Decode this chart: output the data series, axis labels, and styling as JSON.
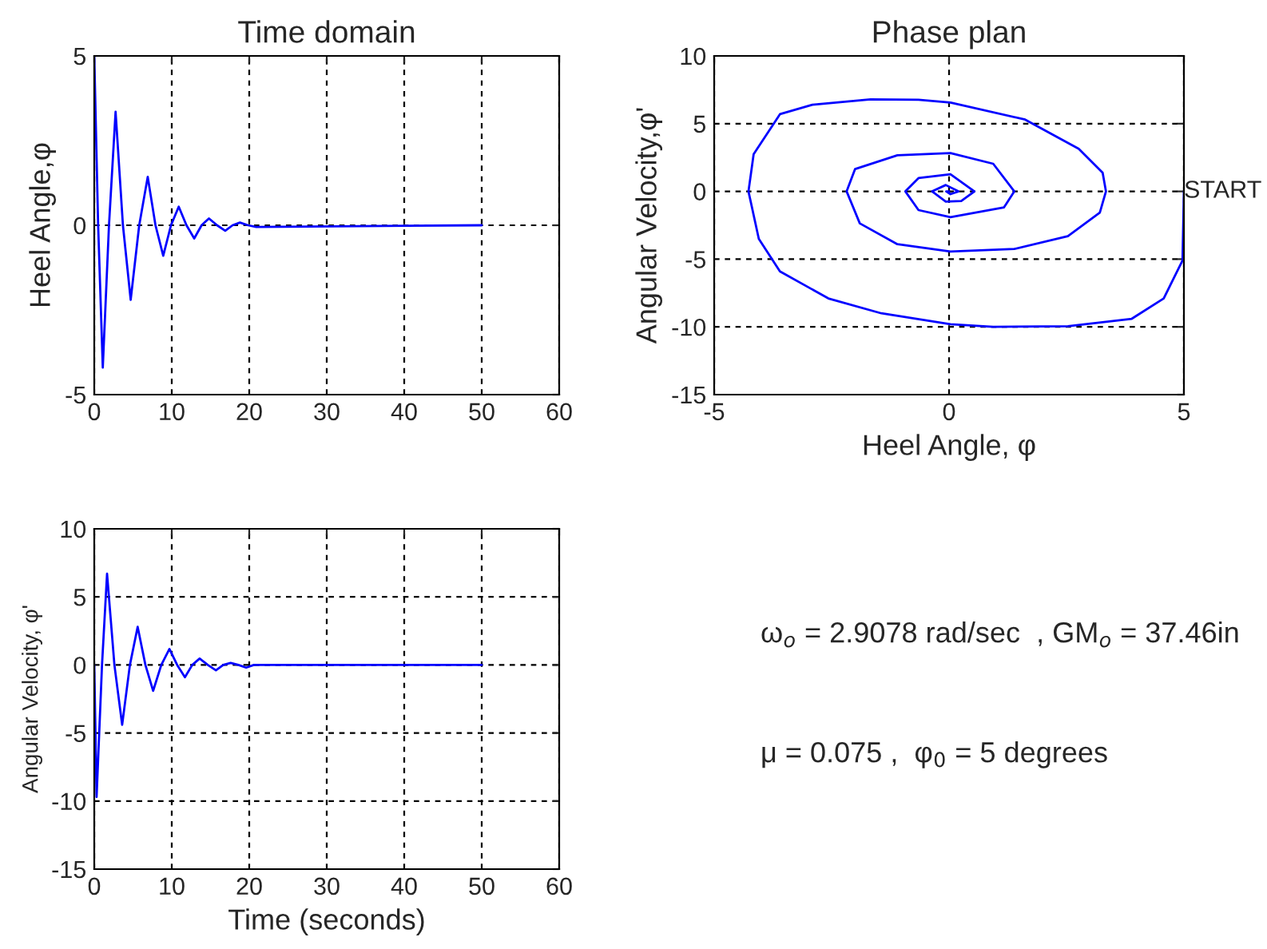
{
  "chart_data": [
    {
      "type": "line",
      "title": "Time domain",
      "ylabel": "Heel Angle,φ",
      "xlim": [
        0,
        60
      ],
      "xticks": [
        0,
        10,
        20,
        30,
        40,
        50,
        60
      ],
      "ylim": [
        -5,
        5
      ],
      "yticks": [
        -5,
        0,
        5
      ],
      "grid": true,
      "series": [
        {
          "color": "#0000ff",
          "x": [
            0,
            0.5,
            1.1,
            1.9,
            2.75,
            3.7,
            4.7,
            5.8,
            6.9,
            7.9,
            8.9,
            9.9,
            10.9,
            11.9,
            12.9,
            13.85,
            14.8,
            15.85,
            16.9,
            17.85,
            18.8,
            19.85,
            20.9,
            50
          ],
          "values": [
            5,
            0,
            -4.2,
            0,
            3.35,
            0,
            -2.2,
            0,
            1.43,
            0,
            -0.9,
            0,
            0.55,
            0,
            -0.39,
            0,
            0.2,
            0,
            -0.16,
            0,
            0.08,
            0,
            -0.05,
            0
          ]
        }
      ]
    },
    {
      "type": "line",
      "title": "Phase plan",
      "xlabel": "Heel Angle, φ",
      "ylabel": "Angular Velocity,φ'",
      "xlim": [
        -5,
        5
      ],
      "xticks": [
        -5,
        0,
        5
      ],
      "ylim": [
        -15,
        10
      ],
      "yticks": [
        -15,
        -10,
        -5,
        0,
        5,
        10
      ],
      "grid": true,
      "annotations": [
        {
          "text": "START",
          "x": 5,
          "y": 0
        }
      ],
      "series": [
        {
          "color": "#0000ff",
          "x": [
            5,
            4.97,
            4.57,
            3.89,
            2.53,
            0.94,
            0.03,
            -1.44,
            -2.57,
            -3.6,
            -4.05,
            -4.27,
            -4.16,
            -3.6,
            -2.91,
            -1.67,
            -0.65,
            0.03,
            1.62,
            2.76,
            3.27,
            3.34,
            3.21,
            2.53,
            1.39,
            0.03,
            -1.1,
            -1.9,
            -2.18,
            -2.0,
            -1.1,
            0.03,
            0.94,
            1.39,
            1.17,
            0.03,
            -0.65,
            -0.93,
            -0.65,
            0.03,
            0.54,
            0.26,
            -0.07,
            -0.36,
            -0.07,
            0.2,
            0.03,
            -0.06,
            0
          ],
          "values": [
            0,
            -5.1,
            -7.9,
            -9.4,
            -9.95,
            -10,
            -9.8,
            -9.0,
            -7.9,
            -5.9,
            -3.5,
            0,
            2.75,
            5.7,
            6.4,
            6.8,
            6.76,
            6.56,
            5.3,
            3.15,
            1.38,
            0,
            -1.57,
            -3.3,
            -4.25,
            -4.44,
            -3.9,
            -2.36,
            0,
            1.65,
            2.67,
            2.83,
            2.04,
            0,
            -1.18,
            -1.9,
            -1.38,
            0,
            0.98,
            1.26,
            0,
            -0.71,
            -0.75,
            0,
            0.47,
            0,
            -0.2,
            0,
            0
          ]
        }
      ]
    },
    {
      "type": "line",
      "xlabel": "Time (seconds)",
      "ylabel": "Angular Velocity, φ'",
      "xlim": [
        0,
        60
      ],
      "xticks": [
        0,
        10,
        20,
        30,
        40,
        50,
        60
      ],
      "ylim": [
        -15,
        10
      ],
      "yticks": [
        -15,
        -10,
        -5,
        0,
        5,
        10
      ],
      "grid": true,
      "series": [
        {
          "color": "#0000ff",
          "x": [
            0,
            0.3,
            1.0,
            1.65,
            2.6,
            3.6,
            4.6,
            5.6,
            6.6,
            7.6,
            8.65,
            9.7,
            10.7,
            11.7,
            12.65,
            13.6,
            14.65,
            15.7,
            16.65,
            17.6,
            18.6,
            19.6,
            20.6,
            50
          ],
          "values": [
            0,
            -9.7,
            0,
            6.7,
            0,
            -4.4,
            0,
            2.8,
            0,
            -1.9,
            0,
            1.17,
            0,
            -0.9,
            0,
            0.47,
            0,
            -0.39,
            0,
            0.15,
            0,
            -0.2,
            0,
            0
          ]
        }
      ]
    },
    {
      "type": "other",
      "annotations": [
        "ω$_{o}$ = 2.9078 rad/sec  , GM$_{o}$ = 37.46in",
        "μ = 0.075 ,  φ$_{0}$ = 5 degrees"
      ]
    }
  ]
}
